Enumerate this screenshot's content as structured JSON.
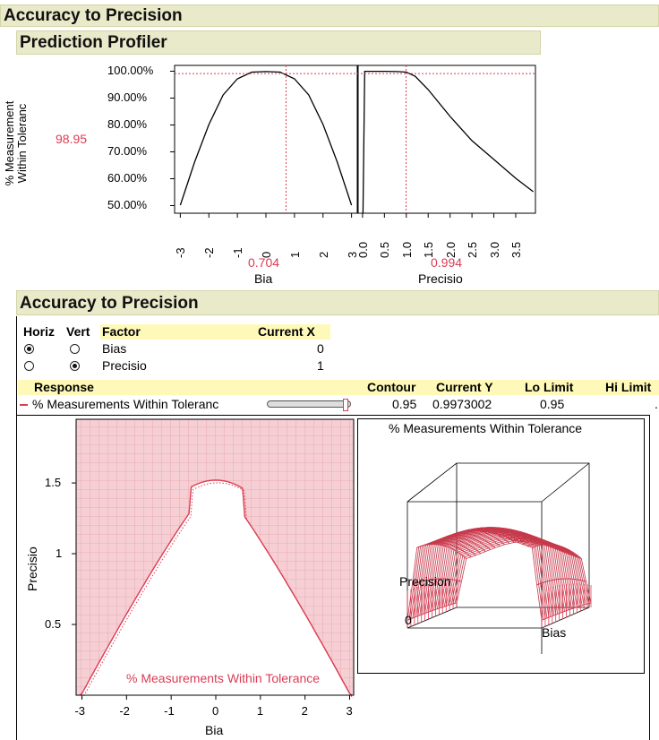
{
  "title": "Accuracy to Precision",
  "profiler": {
    "title": "Prediction Profiler",
    "y_axis_label_line1": "% Measurement",
    "y_axis_label_line2": "Within Toleranc",
    "current_y": "98.95",
    "y_ticks": [
      "100.00%",
      "90.00%",
      "80.00%",
      "70.00%",
      "60.00%",
      "50.00%"
    ],
    "bias_panel": {
      "x_ticks": [
        "-3",
        "-2",
        "-1",
        "0",
        "1",
        "2",
        "3"
      ],
      "current_x": "0.704",
      "label": "Bia"
    },
    "precision_panel": {
      "x_ticks": [
        "0.0",
        "0.5",
        "1.0",
        "1.5",
        "2.0",
        "2.5",
        "3.0",
        "3.5"
      ],
      "current_x": "0.994",
      "label": "Precisio"
    }
  },
  "contour": {
    "title": "Accuracy to Precision",
    "factor_table": {
      "headers": {
        "horiz": "Horiz",
        "vert": "Vert",
        "factor": "Factor",
        "current_x": "Current X"
      },
      "rows": [
        {
          "factor": "Bias",
          "current_x": "0",
          "horiz": true,
          "vert": false
        },
        {
          "factor": "Precisio",
          "current_x": "1",
          "horiz": false,
          "vert": true
        }
      ]
    },
    "response_table": {
      "headers": {
        "response": "Response",
        "contour": "Contour",
        "current_y": "Current Y",
        "lo_limit": "Lo Limit",
        "hi_limit": "Hi Limit"
      },
      "row": {
        "response": "% Measurements Within Toleranc",
        "contour": "0.95",
        "current_y": "0.9973002",
        "lo_limit": "0.95",
        "hi_limit": "."
      }
    },
    "contour_plot": {
      "ylabel": "Precisio",
      "xlabel": "Bia",
      "y_ticks": [
        "1.5",
        "1",
        "0.5"
      ],
      "x_ticks": [
        "-3",
        "-2",
        "-1",
        "0",
        "1",
        "2",
        "3"
      ],
      "contour_label": "% Measurements Within Tolerance"
    },
    "surface_plot": {
      "title": "% Measurements Within Tolerance",
      "axis_precision": "Precision",
      "axis_bias": "Bias",
      "origin_label": "0"
    }
  },
  "colors": {
    "accent": "#dc3c52",
    "header_bg": "#e9eac9",
    "highlight": "#fef9b8",
    "shade": "#f4cdd2"
  },
  "chart_data": [
    {
      "type": "line",
      "title": "",
      "xlabel": "Bia",
      "ylabel": "% Measurement Within Toleranc",
      "x": [
        -3,
        -2.5,
        -2,
        -1.5,
        -1,
        -0.5,
        0,
        0.5,
        1,
        1.5,
        2,
        2.5,
        3
      ],
      "values": [
        50,
        66,
        80,
        91,
        97,
        99.5,
        99.7,
        99.5,
        97,
        91,
        80,
        66,
        50
      ],
      "xlim": [
        -3.2,
        3.2
      ],
      "ylim": [
        47,
        102
      ],
      "current_x": 0.704,
      "current_y": 98.95
    },
    {
      "type": "line",
      "title": "",
      "xlabel": "Precisio",
      "ylabel": "% Measurement Within Toleranc",
      "x": [
        0.01,
        0.05,
        0.5,
        0.8,
        1.0,
        1.2,
        1.5,
        2.0,
        2.5,
        3.0,
        3.5,
        3.9
      ],
      "values": [
        47,
        99.8,
        99.8,
        99.7,
        99.5,
        98,
        93,
        83,
        74,
        67,
        60,
        55
      ],
      "xlim": [
        -0.1,
        3.95
      ],
      "ylim": [
        47,
        102
      ],
      "current_x": 0.994,
      "current_y": 98.95
    }
  ]
}
